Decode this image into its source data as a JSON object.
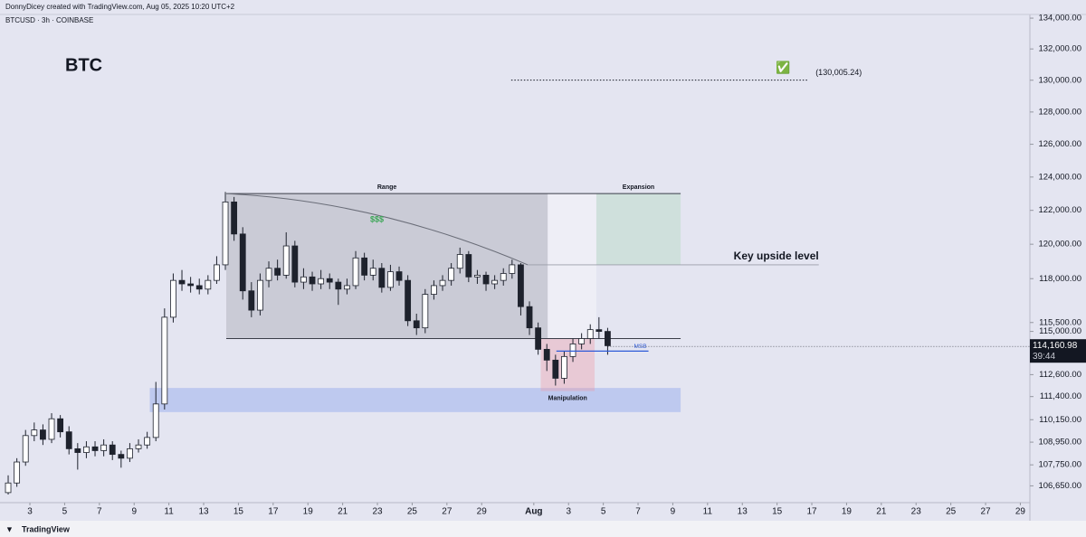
{
  "header": {
    "credit": "DonnyDicey created with TradingView.com, Aug 05, 2025 10:20 UTC+2",
    "symbol": "BTCUSD · 3h · COINBASE"
  },
  "footer": {
    "brand": "TradingView"
  },
  "chart_data": {
    "type": "candlestick",
    "log": true,
    "up_color": "#ffffff",
    "down_color": "#1e222d",
    "ylim": [
      105780,
      134240
    ],
    "xlim": [
      0.28,
      59.55
    ],
    "yticks": [
      {
        "value": 134000,
        "label": "134,000.00"
      },
      {
        "value": 132000,
        "label": "132,000.00"
      },
      {
        "value": 130000,
        "label": "130,000.00"
      },
      {
        "value": 128000,
        "label": "128,000.00"
      },
      {
        "value": 126000,
        "label": "126,000.00"
      },
      {
        "value": 124000,
        "label": "124,000.00"
      },
      {
        "value": 122000,
        "label": "122,000.00"
      },
      {
        "value": 120000,
        "label": "120,000.00"
      },
      {
        "value": 118000,
        "label": "118,000.00"
      },
      {
        "value": 115500,
        "label": "115,500.00"
      },
      {
        "value": 115000,
        "label": "115,000.00"
      },
      {
        "value": 112600,
        "label": "112,600.00"
      },
      {
        "value": 111400,
        "label": "111,400.00"
      },
      {
        "value": 110150,
        "label": "110,150.00"
      },
      {
        "value": 108950,
        "label": "108,950.00"
      },
      {
        "value": 107750,
        "label": "107,750.00"
      },
      {
        "value": 106650,
        "label": "106,650.00"
      }
    ],
    "xticks": [
      {
        "value": 2,
        "label": "3"
      },
      {
        "value": 4,
        "label": "5"
      },
      {
        "value": 6,
        "label": "7"
      },
      {
        "value": 8,
        "label": "9"
      },
      {
        "value": 10,
        "label": "11"
      },
      {
        "value": 12,
        "label": "13"
      },
      {
        "value": 14,
        "label": "15"
      },
      {
        "value": 16,
        "label": "17"
      },
      {
        "value": 18,
        "label": "19"
      },
      {
        "value": 20,
        "label": "21"
      },
      {
        "value": 22,
        "label": "23"
      },
      {
        "value": 24,
        "label": "25"
      },
      {
        "value": 26,
        "label": "27"
      },
      {
        "value": 28,
        "label": "29"
      },
      {
        "value": 31,
        "label": "Aug"
      },
      {
        "value": 33,
        "label": "3"
      },
      {
        "value": 35,
        "label": "5"
      },
      {
        "value": 37,
        "label": "7"
      },
      {
        "value": 39,
        "label": "9"
      },
      {
        "value": 41,
        "label": "11"
      },
      {
        "value": 43,
        "label": "13"
      },
      {
        "value": 45,
        "label": "15"
      },
      {
        "value": 47,
        "label": "17"
      },
      {
        "value": 49,
        "label": "19"
      },
      {
        "value": 51,
        "label": "21"
      },
      {
        "value": 53,
        "label": "23"
      },
      {
        "value": 55,
        "label": "25"
      },
      {
        "value": 57,
        "label": "27"
      },
      {
        "value": 59,
        "label": "29"
      }
    ],
    "candles": [
      [
        0.75,
        106300,
        107200,
        106200,
        106800
      ],
      [
        1.25,
        106800,
        108100,
        106600,
        107900
      ],
      [
        1.75,
        107900,
        109600,
        107700,
        109300
      ],
      [
        2.25,
        109300,
        110000,
        109000,
        109600
      ],
      [
        2.75,
        109600,
        109900,
        108800,
        109100
      ],
      [
        3.25,
        109100,
        110500,
        108900,
        110200
      ],
      [
        3.75,
        110200,
        110400,
        109200,
        109500
      ],
      [
        4.25,
        109500,
        109800,
        108300,
        108600
      ],
      [
        4.75,
        108600,
        108900,
        107500,
        108400
      ],
      [
        5.25,
        108400,
        109000,
        108100,
        108700
      ],
      [
        5.75,
        108700,
        109000,
        108200,
        108500
      ],
      [
        6.25,
        108500,
        109100,
        108200,
        108800
      ],
      [
        6.75,
        108800,
        109000,
        108000,
        108300
      ],
      [
        7.25,
        108300,
        108500,
        107600,
        108100
      ],
      [
        7.75,
        108100,
        108900,
        107900,
        108600
      ],
      [
        8.25,
        108600,
        109100,
        108400,
        108800
      ],
      [
        8.75,
        108800,
        109500,
        108600,
        109200
      ],
      [
        9.25,
        109200,
        112200,
        109000,
        111000
      ],
      [
        9.75,
        111000,
        116300,
        110700,
        115800
      ],
      [
        10.25,
        115800,
        118300,
        115500,
        117900
      ],
      [
        10.75,
        117900,
        118500,
        117300,
        117700
      ],
      [
        11.25,
        117700,
        118100,
        117200,
        117600
      ],
      [
        11.75,
        117600,
        118000,
        117100,
        117400
      ],
      [
        12.25,
        117400,
        118200,
        117100,
        117900
      ],
      [
        12.75,
        117900,
        119300,
        117700,
        118800
      ],
      [
        13.25,
        118800,
        123100,
        118500,
        122500
      ],
      [
        13.75,
        122500,
        122800,
        120200,
        120600
      ],
      [
        14.25,
        120600,
        121000,
        116800,
        117300
      ],
      [
        14.75,
        117300,
        117800,
        115800,
        116200
      ],
      [
        15.25,
        116200,
        118300,
        115900,
        117900
      ],
      [
        15.75,
        117900,
        119000,
        117500,
        118600
      ],
      [
        16.25,
        118600,
        119100,
        117900,
        118200
      ],
      [
        16.75,
        118200,
        120700,
        118000,
        119900
      ],
      [
        17.25,
        119900,
        120200,
        117500,
        117800
      ],
      [
        17.75,
        117800,
        118600,
        117400,
        118100
      ],
      [
        18.25,
        118100,
        118400,
        117300,
        117700
      ],
      [
        18.75,
        117700,
        118500,
        117400,
        118000
      ],
      [
        19.25,
        118000,
        118300,
        117400,
        117800
      ],
      [
        19.75,
        117800,
        118000,
        116500,
        117400
      ],
      [
        20.25,
        117400,
        118000,
        117100,
        117600
      ],
      [
        20.75,
        117600,
        119600,
        117400,
        119200
      ],
      [
        21.25,
        119200,
        119500,
        117900,
        118200
      ],
      [
        21.75,
        118200,
        119100,
        117900,
        118600
      ],
      [
        22.25,
        118600,
        118900,
        117200,
        117500
      ],
      [
        22.75,
        117500,
        118800,
        117300,
        118400
      ],
      [
        23.25,
        118400,
        118700,
        117600,
        117900
      ],
      [
        23.75,
        117900,
        118200,
        115300,
        115600
      ],
      [
        24.25,
        115600,
        116000,
        114800,
        115200
      ],
      [
        24.75,
        115200,
        117400,
        114900,
        117100
      ],
      [
        25.25,
        117100,
        117900,
        116800,
        117600
      ],
      [
        25.75,
        117600,
        118200,
        117300,
        117900
      ],
      [
        26.25,
        117900,
        118900,
        117600,
        118600
      ],
      [
        26.75,
        118600,
        119800,
        118300,
        119400
      ],
      [
        27.25,
        119400,
        119600,
        117800,
        118100
      ],
      [
        27.75,
        118100,
        118500,
        117700,
        118200
      ],
      [
        28.25,
        118200,
        118400,
        117300,
        117700
      ],
      [
        28.75,
        117700,
        118200,
        117400,
        117900
      ],
      [
        29.25,
        117900,
        118600,
        117600,
        118300
      ],
      [
        29.75,
        118300,
        119100,
        118000,
        118800
      ],
      [
        30.25,
        118800,
        118900,
        115900,
        116400
      ],
      [
        30.75,
        116400,
        116700,
        114800,
        115200
      ],
      [
        31.25,
        115200,
        115500,
        113700,
        114000
      ],
      [
        31.75,
        114000,
        114300,
        112800,
        113400
      ],
      [
        32.25,
        113400,
        113700,
        112000,
        112400
      ],
      [
        32.75,
        112400,
        113900,
        112100,
        113600
      ],
      [
        33.25,
        113600,
        114600,
        113300,
        114300
      ],
      [
        33.75,
        114300,
        114900,
        114000,
        114600
      ],
      [
        34.25,
        114600,
        115400,
        114300,
        115100
      ],
      [
        34.75,
        115100,
        115800,
        114600,
        115000
      ],
      [
        35.25,
        115000,
        115200,
        113700,
        114200
      ]
    ],
    "last_price": {
      "value": 114160.98,
      "label": "114,160.98"
    },
    "countdown": "39:44",
    "title": "BTC",
    "range_box": {
      "label": "Range",
      "x": [
        13.3,
        31.8
      ],
      "y": [
        114600,
        123000
      ],
      "line_end": 39.45
    },
    "gap_box": {
      "x": [
        31.8,
        34.6
      ],
      "y": [
        114600,
        123000
      ]
    },
    "expansion_box": {
      "label": "Expansion",
      "x": [
        34.6,
        39.45
      ],
      "y": [
        118800,
        123000
      ]
    },
    "liquidity_curve": {
      "label": "$$$",
      "x": [
        13.3,
        30.65
      ],
      "y": [
        123000,
        118800
      ]
    },
    "key_level": {
      "label": "Key upside level",
      "value": 118800,
      "x": [
        30.65,
        47.4
      ]
    },
    "manipulation_box": {
      "label": "Manipulation",
      "x": [
        31.4,
        34.5
      ],
      "y": [
        111700,
        114600
      ]
    },
    "demand_zone": {
      "x": [
        8.9,
        39.45
      ],
      "y": [
        110560,
        111870
      ]
    },
    "msb": {
      "label": "MSB",
      "value": 113900,
      "x": [
        32.3,
        37.6
      ]
    },
    "target": {
      "icon": "✅",
      "value": 130005.24,
      "label": "(130,005.24)",
      "x": [
        29.7,
        46.8
      ]
    }
  }
}
